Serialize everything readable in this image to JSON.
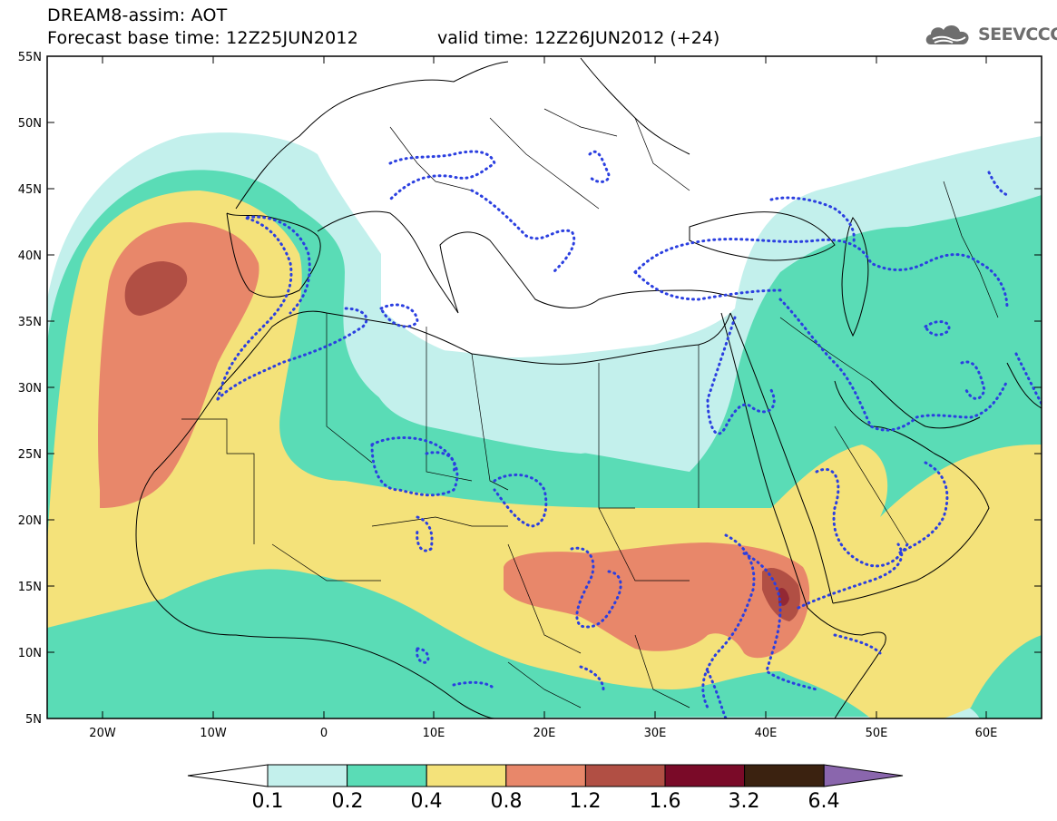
{
  "header": {
    "title": "DREAM8-assim: AOT",
    "base_time": "Forecast base time: 12Z25JUN2012",
    "valid_time": "valid time: 12Z26JUN2012 (+24)"
  },
  "logo": {
    "text": "SEEVCCC",
    "icon": "cloud-logo-icon"
  },
  "map": {
    "lat_ticks": [
      "55N",
      "50N",
      "45N",
      "40N",
      "35N",
      "30N",
      "25N",
      "20N",
      "15N",
      "10N",
      "5N"
    ],
    "lon_ticks": [
      "20W",
      "10W",
      "0",
      "10E",
      "20E",
      "30E",
      "40E",
      "50E",
      "60E"
    ],
    "lon_range": [
      -25,
      65
    ],
    "lat_range": [
      5,
      55
    ],
    "field": "aerosol optical thickness",
    "contour_dotted_color": "#2b3fe0"
  },
  "colorbar": {
    "labels": [
      "0.1",
      "0.2",
      "0.4",
      "0.8",
      "1.2",
      "1.6",
      "3.2",
      "6.4"
    ],
    "colors": [
      "#ffffff",
      "#c3f0ec",
      "#5adcb6",
      "#f4e27a",
      "#e8876a",
      "#b14f44",
      "#7a0a28",
      "#3b2210",
      "#8a66ad"
    ]
  }
}
